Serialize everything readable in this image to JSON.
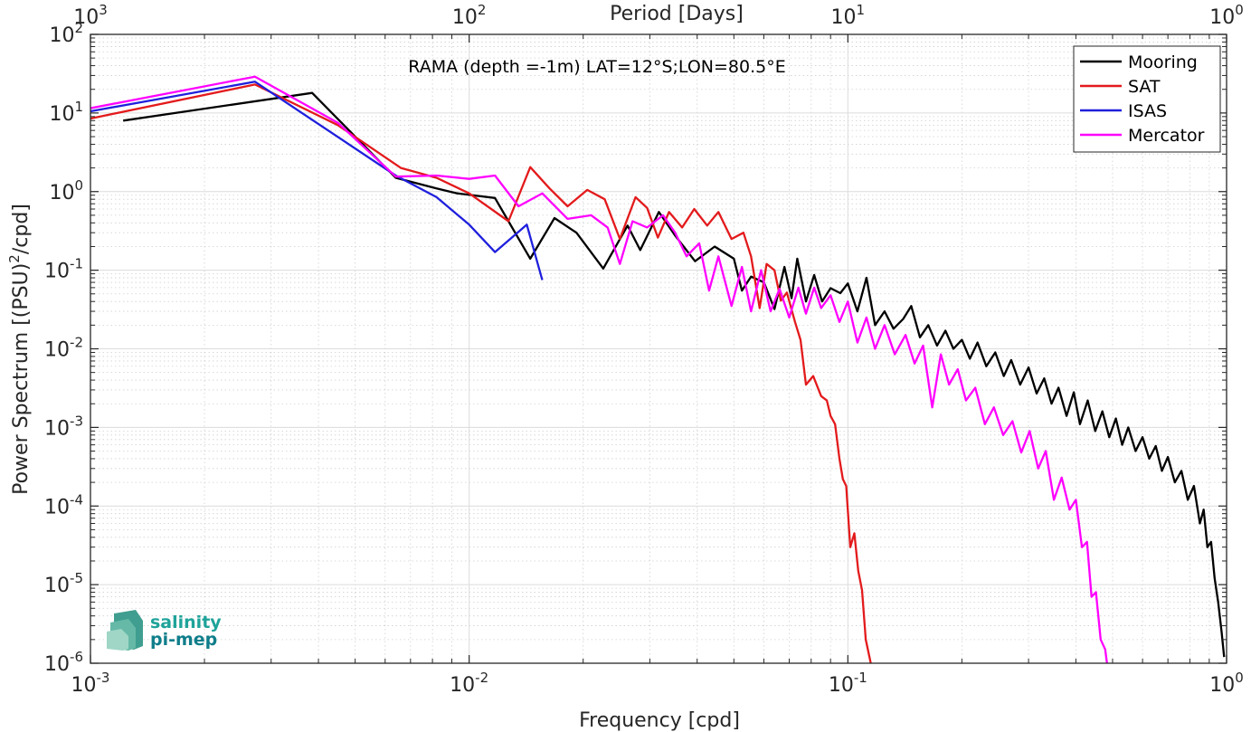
{
  "chart_data": {
    "type": "line",
    "title": "",
    "annotation": "RAMA (depth =-1m) LAT=12°S;LON=80.5°E",
    "xlabel": "Frequency [cpd]",
    "x2label": "Period [Days]",
    "ylabel_parts": [
      "Power Spectrum [(PSU)",
      "2",
      "/cpd]"
    ],
    "xscale": "log",
    "yscale": "log",
    "xlim": [
      0.001,
      1
    ],
    "ylim": [
      1e-06,
      100
    ],
    "grid": true,
    "legend_position": "top-right",
    "x_ticks": [
      {
        "v": 0.001,
        "base": "10",
        "exp": "-3"
      },
      {
        "v": 0.01,
        "base": "10",
        "exp": "-2"
      },
      {
        "v": 0.1,
        "base": "10",
        "exp": "-1"
      },
      {
        "v": 1,
        "base": "10",
        "exp": "0"
      }
    ],
    "x2_ticks": [
      {
        "v": 0.001,
        "base": "10",
        "exp": "3"
      },
      {
        "v": 0.01,
        "base": "10",
        "exp": "2"
      },
      {
        "v": 0.1,
        "base": "10",
        "exp": "1"
      },
      {
        "v": 1,
        "base": "10",
        "exp": "0"
      }
    ],
    "y_ticks": [
      {
        "v": 1e-06,
        "base": "10",
        "exp": "-6"
      },
      {
        "v": 1e-05,
        "base": "10",
        "exp": "-5"
      },
      {
        "v": 0.0001,
        "base": "10",
        "exp": "-4"
      },
      {
        "v": 0.001,
        "base": "10",
        "exp": "-3"
      },
      {
        "v": 0.01,
        "base": "10",
        "exp": "-2"
      },
      {
        "v": 0.1,
        "base": "10",
        "exp": "-1"
      },
      {
        "v": 1,
        "base": "10",
        "exp": "0"
      },
      {
        "v": 10,
        "base": "10",
        "exp": "1"
      },
      {
        "v": 100,
        "base": "10",
        "exp": "2"
      }
    ],
    "series": [
      {
        "name": "Mooring",
        "color": "#000000",
        "points": [
          [
            0.00122,
            8.0
          ],
          [
            0.00385,
            18.0
          ],
          [
            0.0064,
            1.5
          ],
          [
            0.0082,
            1.1
          ],
          [
            0.0093,
            0.95
          ],
          [
            0.0117,
            0.83
          ],
          [
            0.0127,
            0.42
          ],
          [
            0.0145,
            0.14
          ],
          [
            0.0168,
            0.46
          ],
          [
            0.0192,
            0.3
          ],
          [
            0.0226,
            0.105
          ],
          [
            0.0262,
            0.37
          ],
          [
            0.0283,
            0.18
          ],
          [
            0.0317,
            0.55
          ],
          [
            0.0351,
            0.27
          ],
          [
            0.0395,
            0.13
          ],
          [
            0.0445,
            0.2
          ],
          [
            0.05,
            0.14
          ],
          [
            0.0525,
            0.055
          ],
          [
            0.0555,
            0.083
          ],
          [
            0.06,
            0.07
          ],
          [
            0.064,
            0.032
          ],
          [
            0.068,
            0.11
          ],
          [
            0.071,
            0.044
          ],
          [
            0.0735,
            0.14
          ],
          [
            0.0775,
            0.04
          ],
          [
            0.0815,
            0.087
          ],
          [
            0.0855,
            0.04
          ],
          [
            0.09,
            0.059
          ],
          [
            0.0955,
            0.051
          ],
          [
            0.1,
            0.068
          ],
          [
            0.106,
            0.03
          ],
          [
            0.112,
            0.08
          ],
          [
            0.118,
            0.02
          ],
          [
            0.125,
            0.03
          ],
          [
            0.132,
            0.018
          ],
          [
            0.14,
            0.024
          ],
          [
            0.147,
            0.035
          ],
          [
            0.155,
            0.014
          ],
          [
            0.163,
            0.02
          ],
          [
            0.172,
            0.011
          ],
          [
            0.181,
            0.017
          ],
          [
            0.19,
            0.01
          ],
          [
            0.2,
            0.013
          ],
          [
            0.21,
            0.0075
          ],
          [
            0.22,
            0.012
          ],
          [
            0.232,
            0.006
          ],
          [
            0.245,
            0.009
          ],
          [
            0.258,
            0.0045
          ],
          [
            0.27,
            0.0072
          ],
          [
            0.285,
            0.0035
          ],
          [
            0.3,
            0.0058
          ],
          [
            0.315,
            0.0027
          ],
          [
            0.33,
            0.0042
          ],
          [
            0.345,
            0.002
          ],
          [
            0.36,
            0.0032
          ],
          [
            0.378,
            0.0014
          ],
          [
            0.395,
            0.0028
          ],
          [
            0.41,
            0.0011
          ],
          [
            0.43,
            0.0022
          ],
          [
            0.45,
            0.0009
          ],
          [
            0.47,
            0.0016
          ],
          [
            0.49,
            0.00075
          ],
          [
            0.51,
            0.0013
          ],
          [
            0.53,
            0.0006
          ],
          [
            0.55,
            0.001
          ],
          [
            0.575,
            0.0005
          ],
          [
            0.6,
            0.00075
          ],
          [
            0.625,
            0.0004
          ],
          [
            0.65,
            0.00058
          ],
          [
            0.675,
            0.00028
          ],
          [
            0.7,
            0.00042
          ],
          [
            0.73,
            0.0002
          ],
          [
            0.76,
            0.00028
          ],
          [
            0.79,
            0.00012
          ],
          [
            0.82,
            0.00018
          ],
          [
            0.85,
            6e-05
          ],
          [
            0.87,
            9e-05
          ],
          [
            0.89,
            3e-05
          ],
          [
            0.91,
            3.5e-05
          ],
          [
            0.93,
            1.2e-05
          ],
          [
            0.95,
            6e-06
          ],
          [
            0.97,
            2.5e-06
          ],
          [
            0.985,
            1.2e-06
          ]
        ]
      },
      {
        "name": "SAT",
        "color": "#e31a1c",
        "points": [
          [
            0.001,
            8.5
          ],
          [
            0.00272,
            23.0
          ],
          [
            0.0045,
            7.0
          ],
          [
            0.0066,
            2.0
          ],
          [
            0.0082,
            1.5
          ],
          [
            0.01,
            0.95
          ],
          [
            0.0127,
            0.42
          ],
          [
            0.0145,
            2.05
          ],
          [
            0.0163,
            1.1
          ],
          [
            0.0182,
            0.65
          ],
          [
            0.0205,
            1.05
          ],
          [
            0.0228,
            0.8
          ],
          [
            0.025,
            0.25
          ],
          [
            0.0275,
            0.85
          ],
          [
            0.0295,
            0.62
          ],
          [
            0.0315,
            0.26
          ],
          [
            0.0337,
            0.55
          ],
          [
            0.0365,
            0.35
          ],
          [
            0.0393,
            0.6
          ],
          [
            0.0425,
            0.37
          ],
          [
            0.0455,
            0.55
          ],
          [
            0.0493,
            0.25
          ],
          [
            0.053,
            0.3
          ],
          [
            0.0555,
            0.15
          ],
          [
            0.0585,
            0.033
          ],
          [
            0.061,
            0.12
          ],
          [
            0.064,
            0.1
          ],
          [
            0.0665,
            0.041
          ],
          [
            0.069,
            0.052
          ],
          [
            0.0725,
            0.022
          ],
          [
            0.075,
            0.013
          ],
          [
            0.0775,
            0.0035
          ],
          [
            0.081,
            0.0045
          ],
          [
            0.085,
            0.0025
          ],
          [
            0.088,
            0.0022
          ],
          [
            0.09,
            0.0014
          ],
          [
            0.0925,
            0.0011
          ],
          [
            0.095,
            0.0004
          ],
          [
            0.097,
            0.00022
          ],
          [
            0.099,
            0.00018
          ],
          [
            0.1015,
            3e-05
          ],
          [
            0.104,
            4.5e-05
          ],
          [
            0.1065,
            1.5e-05
          ],
          [
            0.109,
            8.5e-06
          ],
          [
            0.1115,
            2e-06
          ],
          [
            0.114,
            1.2e-06
          ],
          [
            0.1155,
            9e-07
          ]
        ]
      },
      {
        "name": "ISAS",
        "color": "#1f1fdd",
        "points": [
          [
            0.001,
            10.5
          ],
          [
            0.00272,
            25.0
          ],
          [
            0.0064,
            1.6
          ],
          [
            0.0082,
            0.85
          ],
          [
            0.01,
            0.38
          ],
          [
            0.0117,
            0.17
          ],
          [
            0.0142,
            0.38
          ],
          [
            0.0156,
            0.075
          ]
        ]
      },
      {
        "name": "Mercator",
        "color": "#ff00ff",
        "points": [
          [
            0.001,
            11.5
          ],
          [
            0.00272,
            29.0
          ],
          [
            0.0045,
            7.5
          ],
          [
            0.0064,
            1.55
          ],
          [
            0.0082,
            1.6
          ],
          [
            0.01,
            1.45
          ],
          [
            0.0117,
            1.6
          ],
          [
            0.0135,
            0.65
          ],
          [
            0.0156,
            0.95
          ],
          [
            0.0182,
            0.45
          ],
          [
            0.021,
            0.5
          ],
          [
            0.0232,
            0.35
          ],
          [
            0.025,
            0.12
          ],
          [
            0.027,
            0.42
          ],
          [
            0.0295,
            0.35
          ],
          [
            0.0325,
            0.5
          ],
          [
            0.035,
            0.3
          ],
          [
            0.0375,
            0.15
          ],
          [
            0.0405,
            0.22
          ],
          [
            0.043,
            0.055
          ],
          [
            0.0455,
            0.15
          ],
          [
            0.0493,
            0.035
          ],
          [
            0.0525,
            0.11
          ],
          [
            0.0555,
            0.03
          ],
          [
            0.059,
            0.1
          ],
          [
            0.0625,
            0.03
          ],
          [
            0.066,
            0.058
          ],
          [
            0.07,
            0.025
          ],
          [
            0.074,
            0.06
          ],
          [
            0.0775,
            0.028
          ],
          [
            0.0815,
            0.06
          ],
          [
            0.085,
            0.033
          ],
          [
            0.09,
            0.048
          ],
          [
            0.095,
            0.022
          ],
          [
            0.1,
            0.04
          ],
          [
            0.106,
            0.012
          ],
          [
            0.112,
            0.025
          ],
          [
            0.118,
            0.01
          ],
          [
            0.125,
            0.02
          ],
          [
            0.133,
            0.0085
          ],
          [
            0.142,
            0.015
          ],
          [
            0.15,
            0.0065
          ],
          [
            0.158,
            0.011
          ],
          [
            0.167,
            0.0018
          ],
          [
            0.176,
            0.0085
          ],
          [
            0.185,
            0.0035
          ],
          [
            0.195,
            0.0055
          ],
          [
            0.205,
            0.0022
          ],
          [
            0.217,
            0.0032
          ],
          [
            0.23,
            0.0011
          ],
          [
            0.243,
            0.0018
          ],
          [
            0.257,
            0.0008
          ],
          [
            0.272,
            0.0012
          ],
          [
            0.287,
            0.00048
          ],
          [
            0.302,
            0.0009
          ],
          [
            0.318,
            0.0003
          ],
          [
            0.333,
            0.0005
          ],
          [
            0.35,
            0.00012
          ],
          [
            0.367,
            0.00023
          ],
          [
            0.385,
            9e-05
          ],
          [
            0.4,
            0.00012
          ],
          [
            0.415,
            3e-05
          ],
          [
            0.428,
            3.5e-05
          ],
          [
            0.44,
            7e-06
          ],
          [
            0.452,
            8e-06
          ],
          [
            0.465,
            2e-06
          ],
          [
            0.478,
            1.5e-06
          ],
          [
            0.49,
            6e-07
          ]
        ]
      }
    ]
  },
  "logo": {
    "line1": "salinity",
    "line2": "pi-mep"
  }
}
